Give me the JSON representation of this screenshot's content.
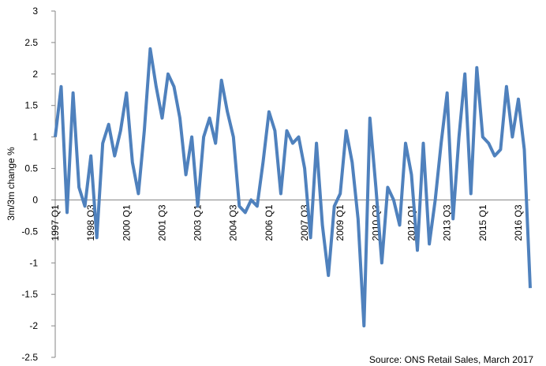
{
  "chart_data": {
    "type": "line",
    "y_label": "3m/3m change %",
    "source": "Source: ONS Retail Sales, March 2017",
    "categories": [
      "1997 Q1",
      null,
      null,
      null,
      null,
      null,
      "1998 Q3",
      null,
      null,
      null,
      null,
      null,
      "2000 Q1",
      null,
      null,
      null,
      null,
      null,
      "2001 Q3",
      null,
      null,
      null,
      null,
      null,
      "2003 Q1",
      null,
      null,
      null,
      null,
      null,
      "2004 Q3",
      null,
      null,
      null,
      null,
      null,
      "2006 Q1",
      null,
      null,
      null,
      null,
      null,
      "2007 Q3",
      null,
      null,
      null,
      null,
      null,
      "2009 Q1",
      null,
      null,
      null,
      null,
      null,
      "2010 Q3",
      null,
      null,
      null,
      null,
      null,
      "2012 Q1",
      null,
      null,
      null,
      null,
      null,
      "2013 Q3",
      null,
      null,
      null,
      null,
      null,
      "2015 Q1",
      null,
      null,
      null,
      null,
      null,
      "2016 Q3",
      null,
      null
    ],
    "series": [
      {
        "name": "3m/3m change",
        "color": "#4f81bd",
        "values": [
          1.0,
          1.8,
          -0.2,
          1.7,
          0.2,
          -0.1,
          0.7,
          -0.6,
          0.9,
          1.2,
          0.7,
          1.1,
          1.7,
          0.6,
          0.1,
          1.1,
          2.4,
          1.8,
          1.3,
          2.0,
          1.8,
          1.3,
          0.4,
          1.0,
          -0.1,
          1.0,
          1.3,
          0.9,
          1.9,
          1.4,
          1.0,
          -0.1,
          -0.2,
          0.0,
          -0.1,
          0.6,
          1.4,
          1.1,
          0.1,
          1.1,
          0.9,
          1.0,
          0.5,
          -0.6,
          0.9,
          -0.4,
          -1.2,
          -0.1,
          0.1,
          1.1,
          0.6,
          -0.3,
          -2.0,
          1.3,
          0.2,
          -1.0,
          0.2,
          0.0,
          -0.4,
          0.9,
          0.4,
          -0.8,
          0.9,
          -0.7,
          0.0,
          0.9,
          1.7,
          -0.3,
          1.0,
          2.0,
          0.1,
          2.1,
          1.0,
          0.9,
          0.7,
          0.8,
          1.8,
          1.0,
          1.6,
          0.8,
          -1.4
        ]
      }
    ],
    "ylim": [
      -2.5,
      3
    ],
    "yticks": [
      -2.5,
      -2,
      -1.5,
      -1,
      -0.5,
      0,
      0.5,
      1,
      1.5,
      2,
      2.5,
      3
    ],
    "grid": false
  }
}
